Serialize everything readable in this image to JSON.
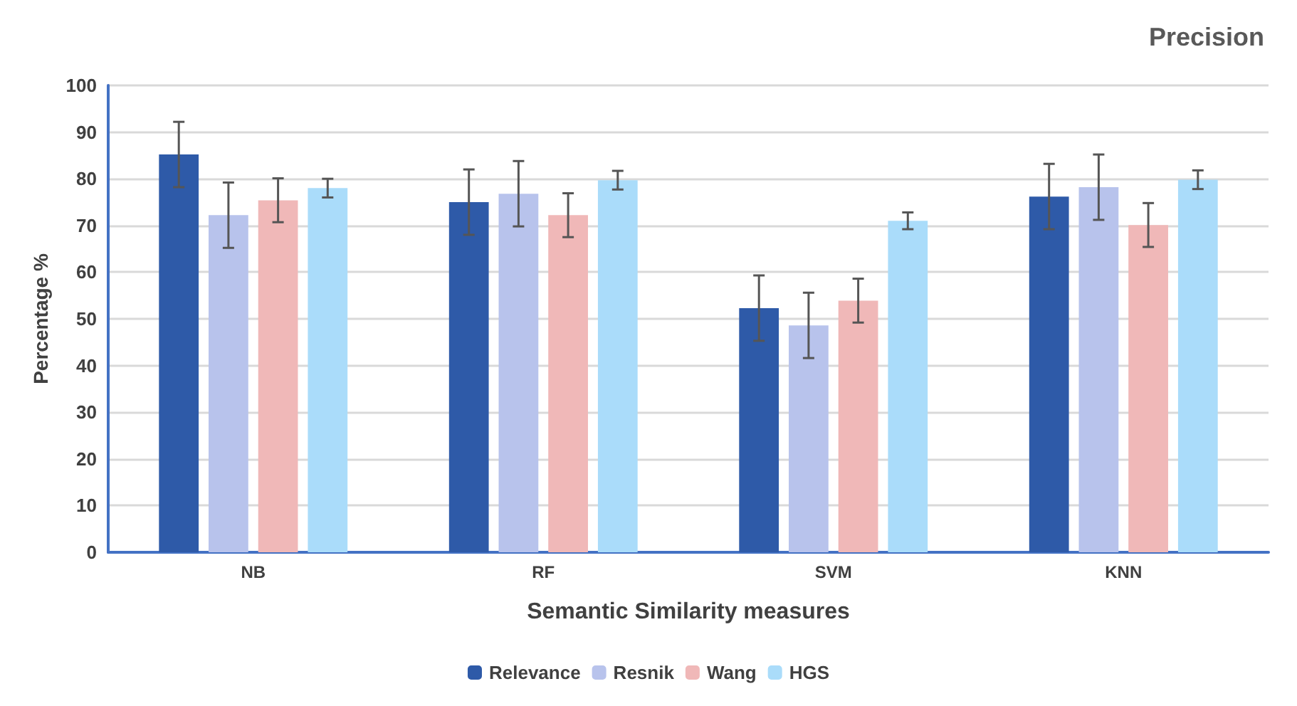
{
  "chart_data": {
    "type": "bar",
    "title": "Precision",
    "xlabel": "Semantic Similarity measures",
    "ylabel": "Percentage %",
    "categories": [
      "NB",
      "RF",
      "SVM",
      "KNN"
    ],
    "series": [
      {
        "name": "Relevance",
        "color": "#2e5aa8",
        "values": [
          85.2,
          75,
          52.3,
          76.2
        ],
        "errors": [
          7,
          7,
          7,
          7
        ]
      },
      {
        "name": "Resnik",
        "color": "#b8c3ec",
        "values": [
          72.2,
          76.8,
          48.6,
          78.2
        ],
        "errors": [
          7,
          7,
          7,
          7
        ]
      },
      {
        "name": "Wang",
        "color": "#f0b8b8",
        "values": [
          75.4,
          72.2,
          53.9,
          70.1
        ],
        "errors": [
          4.7,
          4.7,
          4.7,
          4.7
        ]
      },
      {
        "name": "HGS",
        "color": "#aadcfa",
        "values": [
          78,
          79.7,
          71,
          79.8
        ],
        "errors": [
          2,
          2,
          1.8,
          2
        ]
      }
    ],
    "ylim": [
      0,
      100
    ],
    "yticks": [
      0,
      10,
      20,
      30,
      40,
      50,
      60,
      70,
      80,
      90,
      100
    ],
    "grid": "y",
    "legend": "bottom"
  }
}
